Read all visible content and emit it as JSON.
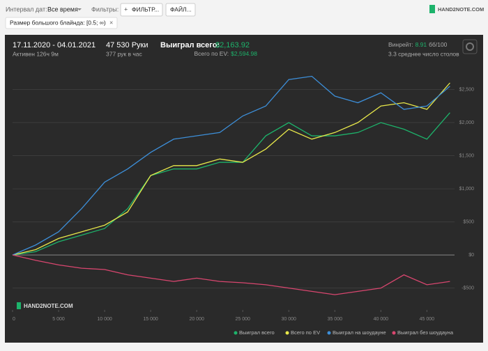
{
  "ui": {
    "date_label": "Интервал дат:",
    "date_value": "Все время",
    "filters_label": "Фильтры:",
    "filter_button": "ФИЛЬТР...",
    "file_button": "ФАЙЛ...",
    "chip": "Размер большого блайнда: [0.5; ∞)",
    "logo": "HAND2NOTE.COM",
    "period": "17.11.2020 - 04.01.2021",
    "active": "Активен 126ч 9м",
    "hands": "47 530 Руки",
    "hands_per_hour": "377 рук в час",
    "won_label": "Выиграл всего:",
    "won_value": "$2,163.92",
    "ev_label": "Всего по EV:",
    "ev_value": "$2,594.98",
    "winrate_label": "Винрейт:",
    "winrate_value": "8.91",
    "winrate_unit": "бб/100",
    "tables": "3.3 среднее число столов"
  },
  "chart_data": {
    "type": "line",
    "watermark": "HAND2NOTE.COM",
    "x": [
      0,
      2500,
      5000,
      7500,
      10000,
      12500,
      15000,
      17500,
      20000,
      22500,
      25000,
      27500,
      30000,
      32500,
      35000,
      37500,
      40000,
      42500,
      45000,
      47500
    ],
    "xlim": [
      0,
      48000
    ],
    "ylim": [
      -830,
      2800
    ],
    "xticks": [
      0,
      {
        "value": 5000,
        "label": "5 000"
      },
      {
        "value": 10000,
        "label": "10 000"
      },
      {
        "value": 15000,
        "label": "15 000"
      },
      {
        "value": 20000,
        "label": "20 000"
      },
      {
        "value": 25000,
        "label": "25 000"
      },
      {
        "value": 30000,
        "label": "30 000"
      },
      {
        "value": 35000,
        "label": "35 000"
      },
      {
        "value": 40000,
        "label": "40 000"
      },
      {
        "value": 45000,
        "label": "45 000"
      }
    ],
    "yticks": [
      {
        "value": -500,
        "label": "-$500"
      },
      {
        "value": 0,
        "label": "$0"
      },
      {
        "value": 500,
        "label": "$500"
      },
      {
        "value": 1000,
        "label": "$1,000"
      },
      {
        "value": 1500,
        "label": "$1,500"
      },
      {
        "value": 2000,
        "label": "$2,000"
      },
      {
        "value": 2500,
        "label": "$2,500"
      }
    ],
    "grid": true,
    "legend": "bottom-right",
    "series": [
      {
        "name": "Выиграл всего",
        "color": "#1db36b",
        "values": [
          0,
          50,
          200,
          300,
          400,
          700,
          1200,
          1300,
          1300,
          1400,
          1400,
          1800,
          2000,
          1800,
          1800,
          1850,
          2000,
          1900,
          1750,
          2150
        ]
      },
      {
        "name": "Всего по EV",
        "color": "#e8e84a",
        "values": [
          0,
          80,
          250,
          350,
          450,
          650,
          1200,
          1350,
          1350,
          1450,
          1400,
          1600,
          1900,
          1750,
          1850,
          2000,
          2250,
          2300,
          2200,
          2600
        ]
      },
      {
        "name": "Выиграл на шоудауне",
        "color": "#3d8fd9",
        "values": [
          0,
          150,
          350,
          700,
          1100,
          1300,
          1550,
          1750,
          1800,
          1850,
          2100,
          2250,
          2650,
          2700,
          2400,
          2300,
          2450,
          2200,
          2250,
          2550
        ]
      },
      {
        "name": "Выиграл без шоудауна",
        "color": "#d9466f",
        "values": [
          0,
          -80,
          -150,
          -200,
          -220,
          -300,
          -350,
          -400,
          -350,
          -400,
          -420,
          -450,
          -500,
          -550,
          -600,
          -550,
          -500,
          -300,
          -450,
          -400
        ]
      }
    ]
  }
}
